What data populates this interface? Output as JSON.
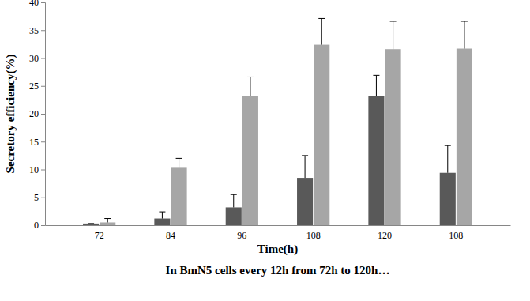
{
  "chart_data": {
    "type": "bar",
    "title": "In BmN5 cells every 12h from 72h to 120h…",
    "x_label": "Time(h)",
    "y_label": "Secretory efficiency(%)",
    "categories": [
      "72",
      "84",
      "96",
      "108",
      "120",
      "108"
    ],
    "series": [
      {
        "color": "#595959",
        "values": [
          0.3,
          1.2,
          3.2,
          8.5,
          23.2,
          9.4
        ],
        "errors": [
          0,
          1.2,
          2.3,
          4.0,
          3.7,
          4.9
        ]
      },
      {
        "color": "#a6a6a6",
        "values": [
          0.5,
          10.3,
          23.2,
          32.4,
          31.6,
          31.7
        ],
        "errors": [
          0.7,
          1.7,
          3.4,
          4.7,
          5.0,
          4.9
        ]
      }
    ],
    "ylim": [
      0,
      40
    ],
    "yticks": [
      0,
      5,
      10,
      15,
      20,
      25,
      30,
      35,
      40
    ],
    "grid": false
  }
}
